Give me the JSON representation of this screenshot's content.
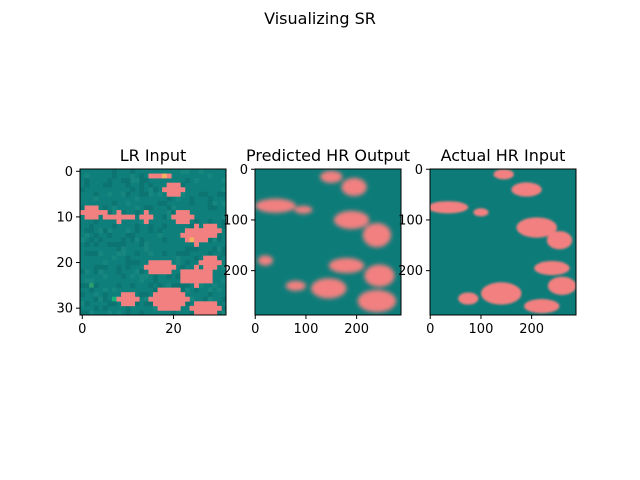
{
  "figure": {
    "suptitle": "Visualizing SR"
  },
  "colors": {
    "teal": "#0f7f7c",
    "teal_dark": "#0a6e6c",
    "pink": "#f28080",
    "green": "#19b27a",
    "orange": "#f5b060"
  },
  "chart_data": [
    {
      "type": "heatmap",
      "title": "LR Input",
      "xlabel": "",
      "ylabel": "",
      "xlim": [
        -0.5,
        31.5
      ],
      "ylim": [
        31.5,
        -0.5
      ],
      "xticks": [
        0,
        20
      ],
      "yticks": [
        0,
        10,
        20,
        30
      ],
      "grid": false,
      "blobs": [
        {
          "x": 2,
          "y": 9,
          "rx": 3,
          "ry": 1.2
        },
        {
          "x": 8,
          "y": 10,
          "rx": 3,
          "ry": 1
        },
        {
          "x": 14,
          "y": 10,
          "rx": 1.5,
          "ry": 1
        },
        {
          "x": 17,
          "y": 1,
          "rx": 2.5,
          "ry": 0.9
        },
        {
          "x": 20,
          "y": 4,
          "rx": 2,
          "ry": 1.5
        },
        {
          "x": 22,
          "y": 10,
          "rx": 2,
          "ry": 1.2
        },
        {
          "x": 25,
          "y": 14,
          "rx": 3,
          "ry": 2
        },
        {
          "x": 28,
          "y": 13,
          "rx": 2,
          "ry": 1.2
        },
        {
          "x": 17,
          "y": 21,
          "rx": 3,
          "ry": 1.5
        },
        {
          "x": 25,
          "y": 23,
          "rx": 3.5,
          "ry": 2
        },
        {
          "x": 28,
          "y": 20,
          "rx": 2,
          "ry": 1.5
        },
        {
          "x": 19,
          "y": 28,
          "rx": 4,
          "ry": 2.5
        },
        {
          "x": 10,
          "y": 28,
          "rx": 2.5,
          "ry": 1.5
        },
        {
          "x": 27,
          "y": 30,
          "rx": 3,
          "ry": 1.5
        }
      ]
    },
    {
      "type": "heatmap",
      "title": "Predicted HR Output",
      "xlabel": "",
      "ylabel": "",
      "xlim": [
        -0.5,
        287.5
      ],
      "ylim": [
        287.5,
        -0.5
      ],
      "xticks": [
        0,
        100,
        200
      ],
      "yticks": [
        0,
        100,
        200
      ],
      "grid": false,
      "blobs": [
        {
          "x": 150,
          "y": 15,
          "rx": 22,
          "ry": 12
        },
        {
          "x": 195,
          "y": 35,
          "rx": 25,
          "ry": 18
        },
        {
          "x": 40,
          "y": 72,
          "rx": 40,
          "ry": 14
        },
        {
          "x": 95,
          "y": 80,
          "rx": 18,
          "ry": 8
        },
        {
          "x": 190,
          "y": 100,
          "rx": 35,
          "ry": 18
        },
        {
          "x": 240,
          "y": 130,
          "rx": 28,
          "ry": 24
        },
        {
          "x": 20,
          "y": 180,
          "rx": 15,
          "ry": 10
        },
        {
          "x": 180,
          "y": 190,
          "rx": 35,
          "ry": 15
        },
        {
          "x": 245,
          "y": 210,
          "rx": 30,
          "ry": 22
        },
        {
          "x": 145,
          "y": 235,
          "rx": 35,
          "ry": 20
        },
        {
          "x": 80,
          "y": 230,
          "rx": 20,
          "ry": 10
        },
        {
          "x": 240,
          "y": 260,
          "rx": 38,
          "ry": 22
        }
      ]
    },
    {
      "type": "heatmap",
      "title": "Actual HR Input",
      "xlabel": "",
      "ylabel": "",
      "xlim": [
        -0.5,
        287.5
      ],
      "ylim": [
        287.5,
        -0.5
      ],
      "xticks": [
        0,
        100,
        200
      ],
      "yticks": [
        0,
        100,
        200
      ],
      "grid": false,
      "blobs": [
        {
          "x": 145,
          "y": 10,
          "rx": 20,
          "ry": 10
        },
        {
          "x": 190,
          "y": 40,
          "rx": 30,
          "ry": 14
        },
        {
          "x": 35,
          "y": 75,
          "rx": 40,
          "ry": 12
        },
        {
          "x": 100,
          "y": 85,
          "rx": 15,
          "ry": 8
        },
        {
          "x": 210,
          "y": 115,
          "rx": 40,
          "ry": 20
        },
        {
          "x": 255,
          "y": 140,
          "rx": 25,
          "ry": 18
        },
        {
          "x": 240,
          "y": 195,
          "rx": 35,
          "ry": 14
        },
        {
          "x": 260,
          "y": 230,
          "rx": 28,
          "ry": 18
        },
        {
          "x": 140,
          "y": 245,
          "rx": 40,
          "ry": 22
        },
        {
          "x": 75,
          "y": 255,
          "rx": 20,
          "ry": 12
        },
        {
          "x": 220,
          "y": 270,
          "rx": 35,
          "ry": 14
        }
      ]
    }
  ]
}
